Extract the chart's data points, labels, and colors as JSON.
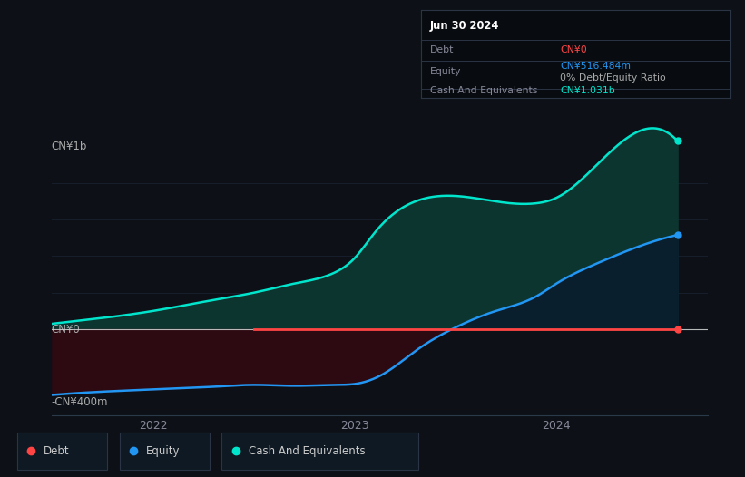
{
  "background_color": "#0d1117",
  "plot_bg_color": "#0d1117",
  "ylabel_top": "CN¥1b",
  "ylabel_bottom": "-CN¥400m",
  "ylabel_zero": "CN¥0",
  "x_ticks": [
    "2022",
    "2023",
    "2024"
  ],
  "tooltip_date": "Jun 30 2024",
  "tooltip_debt_label": "Debt",
  "tooltip_debt_value": "CN¥0",
  "tooltip_equity_label": "Equity",
  "tooltip_equity_value": "CN¥516.484m",
  "tooltip_ratio": "0% Debt/Equity Ratio",
  "tooltip_cash_label": "Cash And Equivalents",
  "tooltip_cash_value": "CN¥1.031b",
  "debt_color": "#ff4444",
  "equity_color": "#2196f3",
  "cash_color": "#00e5cc",
  "cash_fill_color": "#0d3530",
  "neg_fill_color": "#2d0a12",
  "grid_color": "#1a2535",
  "zero_line_color": "#cccccc",
  "tooltip_bg": "#080c10",
  "tooltip_border": "#2a3444",
  "legend_bg": "#0f1923",
  "legend_border": "#2a3444",
  "cash_data_x": [
    2021.5,
    2021.7,
    2022.0,
    2022.3,
    2022.5,
    2022.7,
    2022.9,
    2023.0,
    2023.1,
    2023.3,
    2023.5,
    2023.7,
    2023.9,
    2024.0,
    2024.2,
    2024.4,
    2024.6
  ],
  "cash_data_y": [
    30,
    55,
    100,
    160,
    200,
    250,
    310,
    390,
    530,
    700,
    730,
    700,
    690,
    720,
    900,
    1080,
    1031
  ],
  "equity_data_x": [
    2021.5,
    2021.7,
    2022.0,
    2022.3,
    2022.5,
    2022.7,
    2022.9,
    2023.0,
    2023.15,
    2023.3,
    2023.5,
    2023.7,
    2023.9,
    2024.0,
    2024.2,
    2024.4,
    2024.6
  ],
  "equity_data_y": [
    -360,
    -345,
    -330,
    -315,
    -305,
    -310,
    -305,
    -300,
    -240,
    -120,
    10,
    100,
    180,
    250,
    360,
    450,
    516
  ],
  "debt_x_start": 2022.5,
  "debt_x_end": 2024.6,
  "x_min": 2021.5,
  "x_max": 2024.75,
  "y_min": -470,
  "y_max": 1150
}
